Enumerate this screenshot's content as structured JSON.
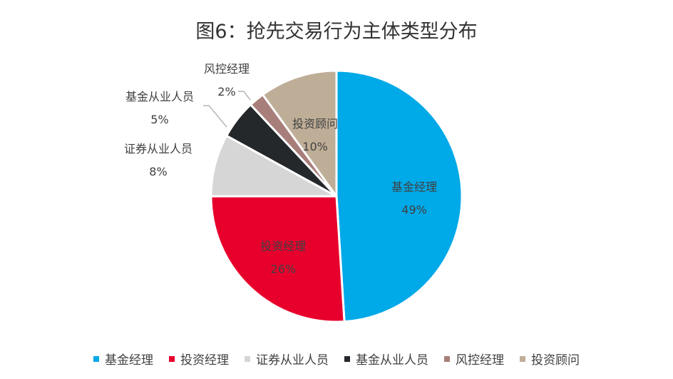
{
  "chart_data": {
    "type": "pie",
    "title": "图6：抢先交易行为主体类型分布",
    "slices": [
      {
        "label": "基金经理",
        "value": 49,
        "display": "49%",
        "color": "#00A9E8"
      },
      {
        "label": "投资经理",
        "value": 26,
        "display": "26%",
        "color": "#E8002D"
      },
      {
        "label": "证券从业人员",
        "value": 8,
        "display": "8%",
        "color": "#D6D6D6"
      },
      {
        "label": "基金从业人员",
        "value": 5,
        "display": "5%",
        "color": "#25282B"
      },
      {
        "label": "风控经理",
        "value": 2,
        "display": "2%",
        "color": "#A87E7A"
      },
      {
        "label": "投资顾问",
        "value": 10,
        "display": "10%",
        "color": "#BFAE97"
      }
    ],
    "legend_position": "bottom"
  }
}
